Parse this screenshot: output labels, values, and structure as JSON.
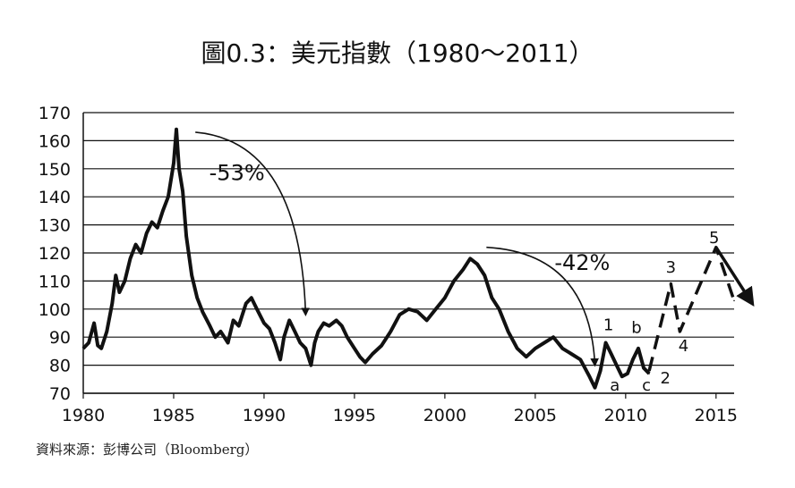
{
  "chart_data": {
    "type": "line",
    "title": "圖0.3：美元指數（1980～2011）",
    "source": "資料來源：彭博公司（Bloomberg）",
    "xlabel": "",
    "ylabel": "",
    "xlim": [
      1980,
      2016
    ],
    "ylim": [
      70,
      170
    ],
    "x_ticks": [
      1980,
      1985,
      1990,
      1995,
      2000,
      2005,
      2010,
      2015
    ],
    "y_ticks": [
      70,
      80,
      90,
      100,
      110,
      120,
      130,
      140,
      150,
      160,
      170
    ],
    "grid": true,
    "series": [
      {
        "x": [
          1980.0,
          1980.3,
          1980.6,
          1980.8,
          1981.0,
          1981.3,
          1981.6,
          1981.8,
          1982.0,
          1982.3,
          1982.6,
          1982.9,
          1983.2,
          1983.5,
          1983.8,
          1984.1,
          1984.4,
          1984.7,
          1985.0,
          1985.15,
          1985.3,
          1985.5,
          1985.7,
          1986.0,
          1986.3,
          1986.6,
          1987.0,
          1987.3,
          1987.6,
          1988.0,
          1988.3,
          1988.6,
          1989.0,
          1989.3,
          1989.6,
          1990.0,
          1990.3,
          1990.6,
          1990.9,
          1991.1,
          1991.4,
          1991.7,
          1992.0,
          1992.3,
          1992.6,
          1992.8,
          1993.0,
          1993.3,
          1993.6,
          1994.0,
          1994.3,
          1994.6,
          1995.0,
          1995.3,
          1995.6,
          1996.0,
          1996.5,
          1997.0,
          1997.5,
          1998.0,
          1998.5,
          1999.0,
          1999.5,
          2000.0,
          2000.5,
          2001.0,
          2001.4,
          2001.8,
          2002.2,
          2002.6,
          2003.0,
          2003.5,
          2004.0,
          2004.5,
          2005.0,
          2005.5,
          2006.0,
          2006.5,
          2007.0,
          2007.5,
          2008.0,
          2008.3,
          2008.6,
          2008.9,
          2009.2,
          2009.5,
          2009.8,
          2010.1,
          2010.4,
          2010.7,
          2011.0,
          2011.3
        ],
        "values": [
          86,
          88,
          95,
          87,
          86,
          92,
          102,
          112,
          106,
          110,
          118,
          123,
          120,
          127,
          131,
          129,
          135,
          140,
          152,
          164,
          150,
          142,
          126,
          112,
          104,
          99,
          94,
          90,
          92,
          88,
          96,
          94,
          102,
          104,
          100,
          95,
          93,
          88,
          82,
          90,
          96,
          92,
          88,
          86,
          80,
          88,
          92,
          95,
          94,
          96,
          94,
          90,
          86,
          83,
          81,
          84,
          87,
          92,
          98,
          100,
          99,
          96,
          100,
          104,
          110,
          114,
          118,
          116,
          112,
          104,
          100,
          92,
          86,
          83,
          86,
          88,
          90,
          86,
          84,
          82,
          76,
          72,
          78,
          88,
          84,
          80,
          76,
          77,
          82,
          86,
          79,
          77
        ],
        "style": "solid"
      },
      {
        "x": [
          2011.3,
          2012.5,
          2013.0,
          2015.0,
          2016.0
        ],
        "values": [
          78,
          109,
          92,
          122,
          103
        ],
        "style": "dashed"
      }
    ],
    "annotations": [
      {
        "text": "-53%",
        "x": 1988.5,
        "y": 146
      },
      {
        "text": "-42%",
        "x": 2007.6,
        "y": 114
      },
      {
        "text": "1",
        "x": 2009.05,
        "y": 92.5
      },
      {
        "text": "b",
        "x": 2010.6,
        "y": 91.5
      },
      {
        "text": "a",
        "x": 2009.4,
        "y": 71
      },
      {
        "text": "c",
        "x": 2011.15,
        "y": 71
      },
      {
        "text": "2",
        "x": 2012.2,
        "y": 73.5
      },
      {
        "text": "3",
        "x": 2012.5,
        "y": 113
      },
      {
        "text": "4",
        "x": 2013.2,
        "y": 85
      },
      {
        "text": "5",
        "x": 2014.9,
        "y": 123.5
      }
    ],
    "arrows": [
      {
        "from": [
          1986.2,
          163
        ],
        "to": [
          1992.3,
          98
        ]
      },
      {
        "from": [
          2002.3,
          122
        ],
        "to": [
          2008.3,
          80
        ]
      },
      {
        "from": [
          2015.0,
          122
        ],
        "to": [
          2017.0,
          102
        ]
      }
    ]
  }
}
